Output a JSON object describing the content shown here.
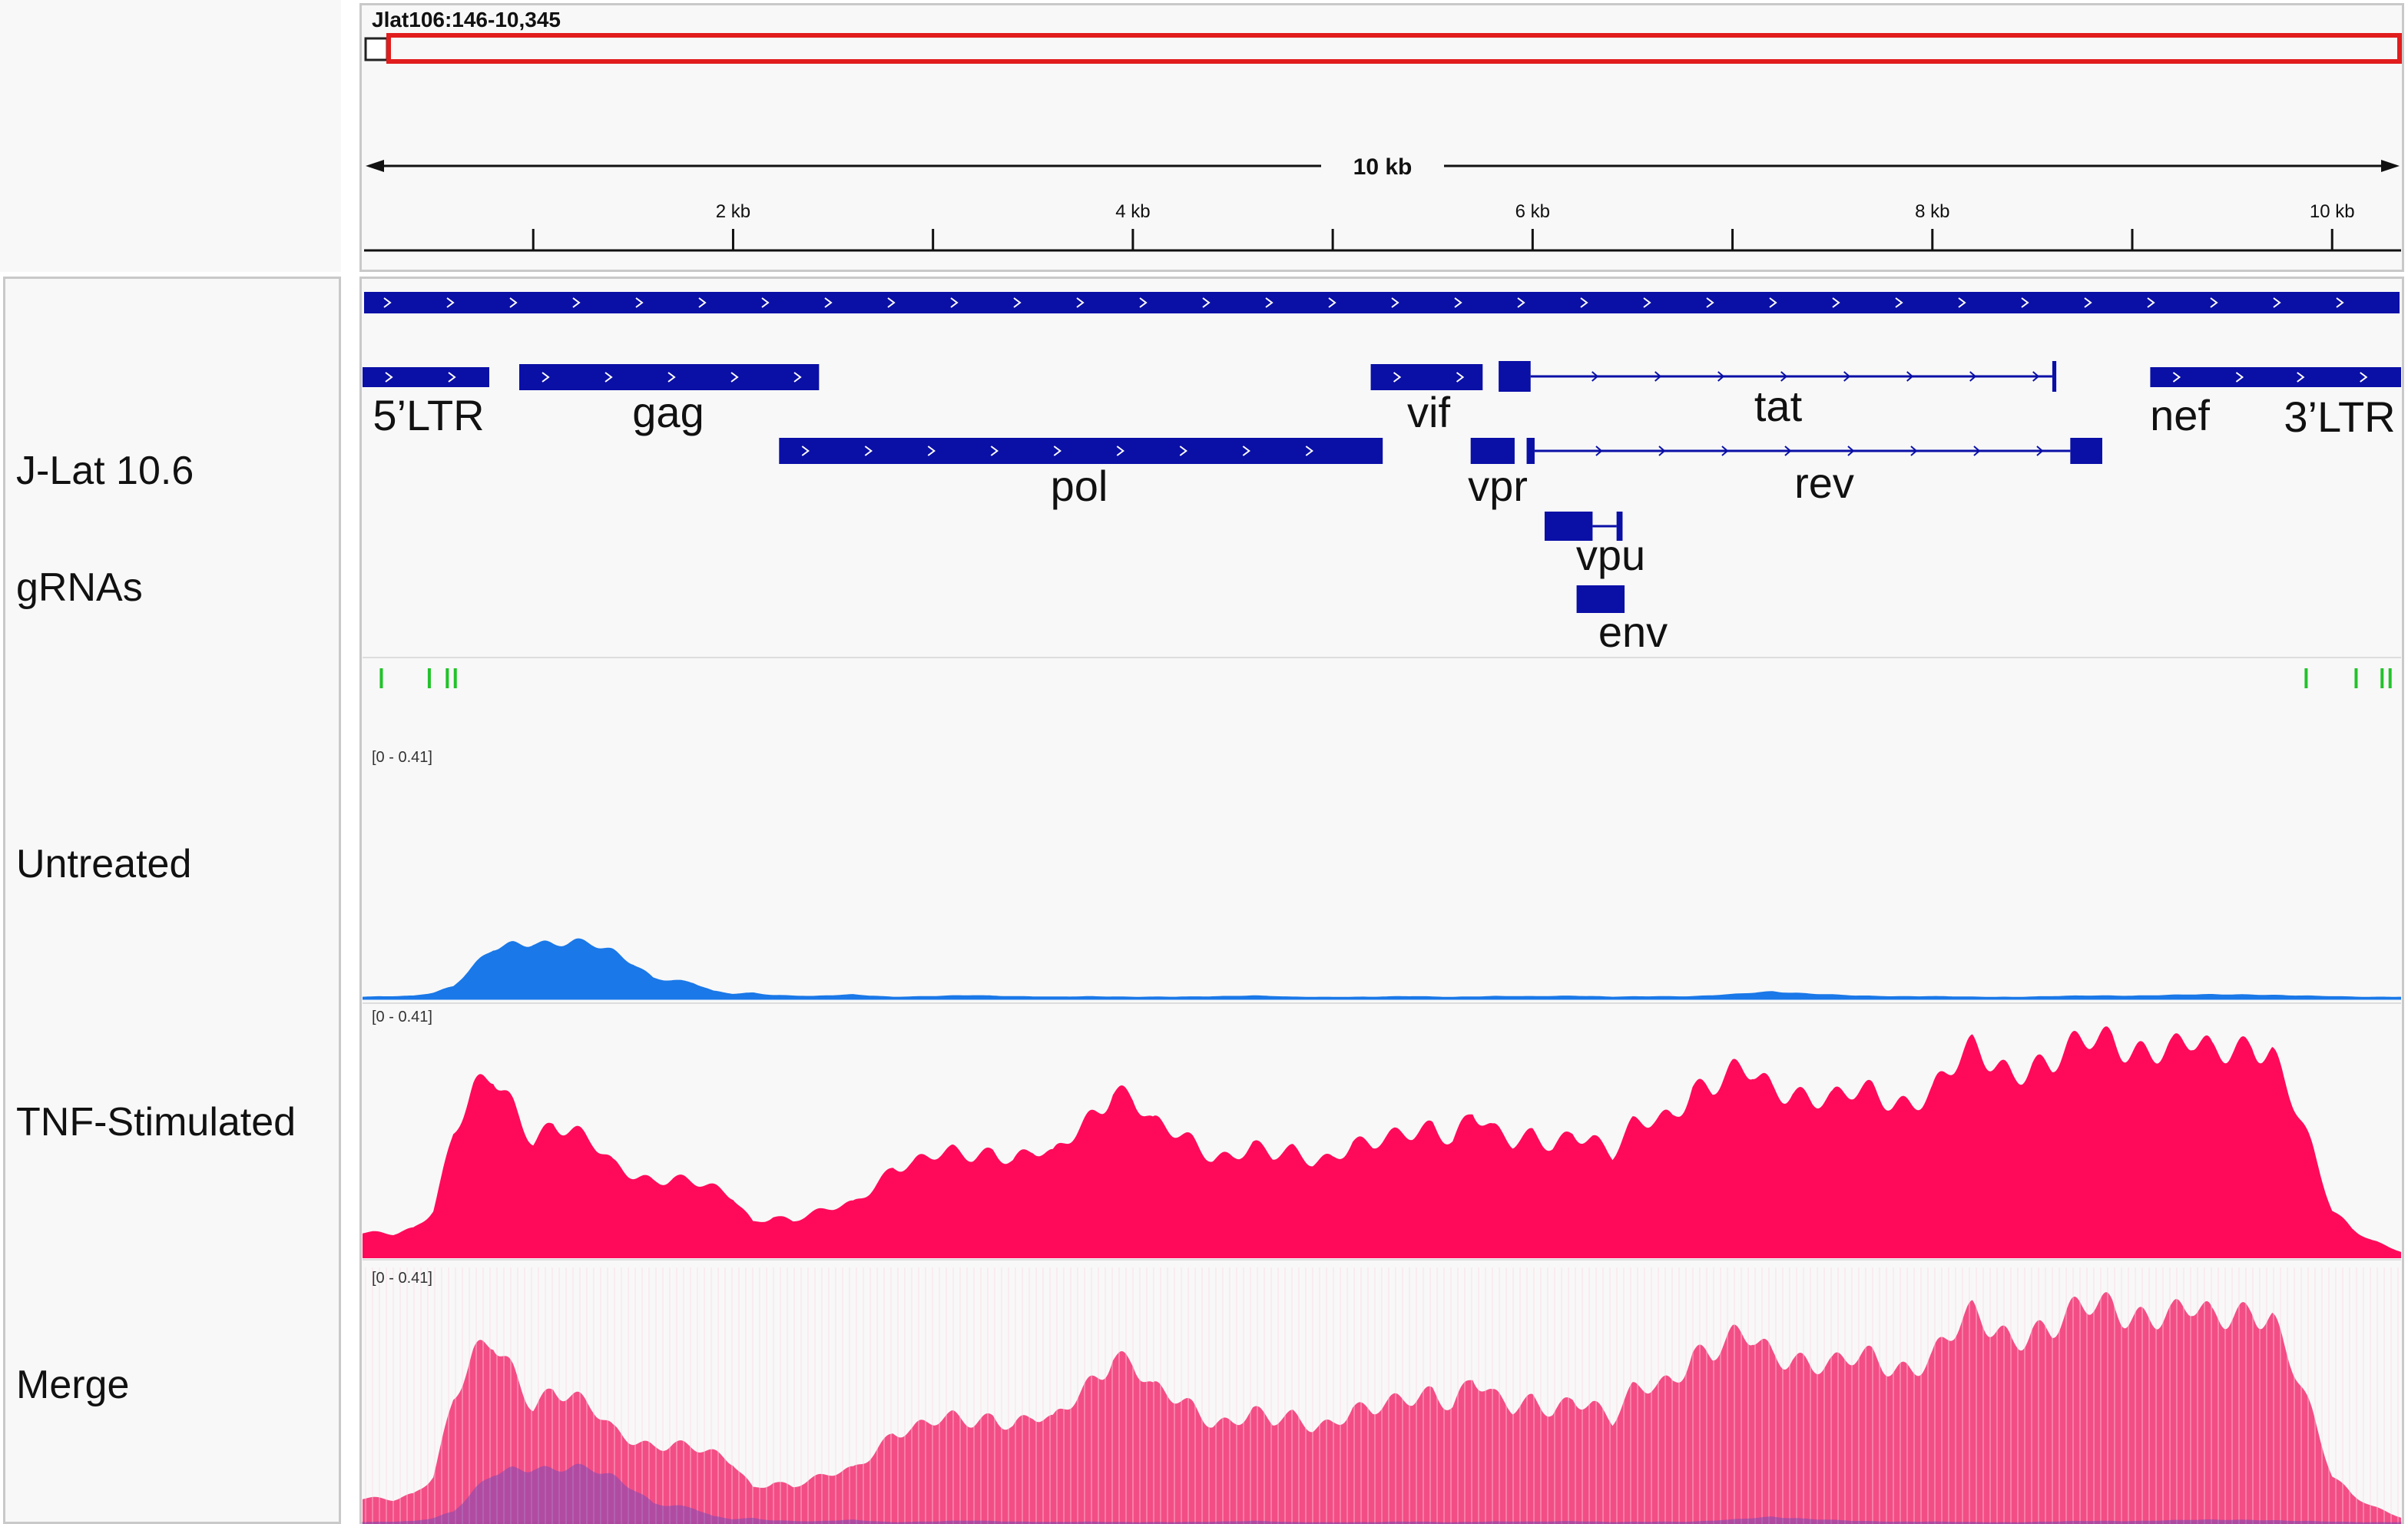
{
  "locus": "Jlat106:146-10,345",
  "ruler": {
    "span_label": "10 kb",
    "ticks": [
      {
        "kb": 2,
        "label": "2 kb"
      },
      {
        "kb": 4,
        "label": "4 kb"
      },
      {
        "kb": 6,
        "label": "6 kb"
      },
      {
        "kb": 8,
        "label": "8 kb"
      },
      {
        "kb": 10,
        "label": "10 kb"
      }
    ],
    "region_start": 146,
    "region_end": 10345
  },
  "tracks": {
    "annotation": "J-Lat 10.6",
    "grnas": "gRNAs",
    "untreated": "Untreated",
    "tnf": "TNF-Stimulated",
    "merge": "Merge"
  },
  "range_labels": {
    "untreated": "[0 - 0.41]",
    "tnf": "[0 - 0.41]",
    "merge": "[0 - 0.41]"
  },
  "genes": [
    {
      "name": "5’LTR",
      "start": 146,
      "end": 780
    },
    {
      "name": "gag",
      "start": 930,
      "end": 2430
    },
    {
      "name": "pol",
      "start": 2230,
      "end": 5250
    },
    {
      "name": "vif",
      "start": 5190,
      "end": 5750
    },
    {
      "name": "vpr",
      "start": 5690,
      "end": 5910
    },
    {
      "name": "tat",
      "start": 5830,
      "end": 8620
    },
    {
      "name": "rev",
      "start": 5970,
      "end": 8850
    },
    {
      "name": "vpu",
      "start": 6060,
      "end": 6450
    },
    {
      "name": "env",
      "start": 6220,
      "end": 6460
    },
    {
      "name": "nef",
      "start": 9090,
      "end": 9800
    },
    {
      "name": "3’LTR",
      "start": 9710,
      "end": 10345
    }
  ],
  "grna_sites": [
    240,
    480,
    570,
    610,
    9870,
    10120,
    10250,
    10290
  ],
  "colors": {
    "gene": "#0a0fa6",
    "grna": "#22c22a",
    "untreated": "#1a78e8",
    "tnf": "#ff0a5a",
    "merge": "#f23a78",
    "region_box": "#e11d1d"
  },
  "coverage_max": 0.41,
  "untreated_coverage": [
    [
      146,
      0.003
    ],
    [
      300,
      0.004
    ],
    [
      400,
      0.005
    ],
    [
      500,
      0.01
    ],
    [
      600,
      0.02
    ],
    [
      700,
      0.05
    ],
    [
      800,
      0.08
    ],
    [
      900,
      0.09
    ],
    [
      1000,
      0.095
    ],
    [
      1100,
      0.09
    ],
    [
      1200,
      0.09
    ],
    [
      1300,
      0.085
    ],
    [
      1400,
      0.075
    ],
    [
      1500,
      0.06
    ],
    [
      1600,
      0.035
    ],
    [
      1700,
      0.03
    ],
    [
      1800,
      0.025
    ],
    [
      1900,
      0.012
    ],
    [
      2000,
      0.008
    ],
    [
      2100,
      0.01
    ],
    [
      2200,
      0.006
    ],
    [
      2400,
      0.004
    ],
    [
      2600,
      0.007
    ],
    [
      2800,
      0.003
    ],
    [
      3000,
      0.004
    ],
    [
      3200,
      0.006
    ],
    [
      3400,
      0.004
    ],
    [
      3600,
      0.003
    ],
    [
      3800,
      0.004
    ],
    [
      4000,
      0.003
    ],
    [
      4200,
      0.003
    ],
    [
      4400,
      0.004
    ],
    [
      4600,
      0.005
    ],
    [
      4800,
      0.003
    ],
    [
      5000,
      0.003
    ],
    [
      5200,
      0.003
    ],
    [
      5400,
      0.004
    ],
    [
      5600,
      0.003
    ],
    [
      5800,
      0.004
    ],
    [
      6000,
      0.004
    ],
    [
      6200,
      0.005
    ],
    [
      6400,
      0.003
    ],
    [
      6600,
      0.004
    ],
    [
      6800,
      0.004
    ],
    [
      7000,
      0.007
    ],
    [
      7200,
      0.012
    ],
    [
      7400,
      0.008
    ],
    [
      7600,
      0.005
    ],
    [
      7800,
      0.004
    ],
    [
      8000,
      0.004
    ],
    [
      8200,
      0.003
    ],
    [
      8400,
      0.003
    ],
    [
      8600,
      0.004
    ],
    [
      8800,
      0.005
    ],
    [
      9000,
      0.005
    ],
    [
      9200,
      0.006
    ],
    [
      9400,
      0.007
    ],
    [
      9600,
      0.007
    ],
    [
      9800,
      0.005
    ],
    [
      10000,
      0.004
    ],
    [
      10200,
      0.003
    ],
    [
      10345,
      0.003
    ]
  ],
  "tnf_coverage": [
    [
      146,
      0.04
    ],
    [
      300,
      0.04
    ],
    [
      400,
      0.05
    ],
    [
      500,
      0.08
    ],
    [
      600,
      0.2
    ],
    [
      700,
      0.26
    ],
    [
      800,
      0.29
    ],
    [
      900,
      0.25
    ],
    [
      1000,
      0.2
    ],
    [
      1100,
      0.22
    ],
    [
      1200,
      0.2
    ],
    [
      1300,
      0.18
    ],
    [
      1400,
      0.15
    ],
    [
      1500,
      0.14
    ],
    [
      1600,
      0.13
    ],
    [
      1700,
      0.13
    ],
    [
      1800,
      0.12
    ],
    [
      1900,
      0.11
    ],
    [
      2000,
      0.1
    ],
    [
      2100,
      0.06
    ],
    [
      2200,
      0.07
    ],
    [
      2300,
      0.06
    ],
    [
      2400,
      0.07
    ],
    [
      2500,
      0.08
    ],
    [
      2600,
      0.09
    ],
    [
      2700,
      0.12
    ],
    [
      2800,
      0.15
    ],
    [
      2900,
      0.15
    ],
    [
      3000,
      0.16
    ],
    [
      3100,
      0.17
    ],
    [
      3200,
      0.17
    ],
    [
      3300,
      0.18
    ],
    [
      3400,
      0.16
    ],
    [
      3500,
      0.17
    ],
    [
      3600,
      0.16
    ],
    [
      3700,
      0.2
    ],
    [
      3800,
      0.24
    ],
    [
      3900,
      0.28
    ],
    [
      4000,
      0.26
    ],
    [
      4100,
      0.21
    ],
    [
      4200,
      0.2
    ],
    [
      4300,
      0.19
    ],
    [
      4400,
      0.17
    ],
    [
      4500,
      0.17
    ],
    [
      4600,
      0.18
    ],
    [
      4700,
      0.16
    ],
    [
      4800,
      0.17
    ],
    [
      4900,
      0.16
    ],
    [
      5000,
      0.17
    ],
    [
      5100,
      0.19
    ],
    [
      5200,
      0.18
    ],
    [
      5300,
      0.19
    ],
    [
      5400,
      0.2
    ],
    [
      5500,
      0.22
    ],
    [
      5600,
      0.2
    ],
    [
      5700,
      0.24
    ],
    [
      5800,
      0.2
    ],
    [
      5900,
      0.18
    ],
    [
      6000,
      0.2
    ],
    [
      6100,
      0.19
    ],
    [
      6200,
      0.21
    ],
    [
      6300,
      0.19
    ],
    [
      6400,
      0.16
    ],
    [
      6500,
      0.21
    ],
    [
      6600,
      0.23
    ],
    [
      6700,
      0.24
    ],
    [
      6800,
      0.28
    ],
    [
      6900,
      0.27
    ],
    [
      7000,
      0.29
    ],
    [
      7100,
      0.3
    ],
    [
      7200,
      0.28
    ],
    [
      7300,
      0.28
    ],
    [
      7400,
      0.26
    ],
    [
      7500,
      0.25
    ],
    [
      7600,
      0.26
    ],
    [
      7700,
      0.27
    ],
    [
      7800,
      0.26
    ],
    [
      7900,
      0.26
    ],
    [
      8000,
      0.27
    ],
    [
      8100,
      0.3
    ],
    [
      8200,
      0.33
    ],
    [
      8300,
      0.32
    ],
    [
      8400,
      0.31
    ],
    [
      8500,
      0.32
    ],
    [
      8600,
      0.31
    ],
    [
      8700,
      0.33
    ],
    [
      8800,
      0.35
    ],
    [
      8900,
      0.36
    ],
    [
      9000,
      0.35
    ],
    [
      9100,
      0.34
    ],
    [
      9200,
      0.33
    ],
    [
      9300,
      0.34
    ],
    [
      9400,
      0.33
    ],
    [
      9500,
      0.35
    ],
    [
      9600,
      0.36
    ],
    [
      9700,
      0.33
    ],
    [
      9800,
      0.25
    ],
    [
      9900,
      0.17
    ],
    [
      10000,
      0.08
    ],
    [
      10100,
      0.05
    ],
    [
      10200,
      0.03
    ],
    [
      10345,
      0.01
    ]
  ]
}
